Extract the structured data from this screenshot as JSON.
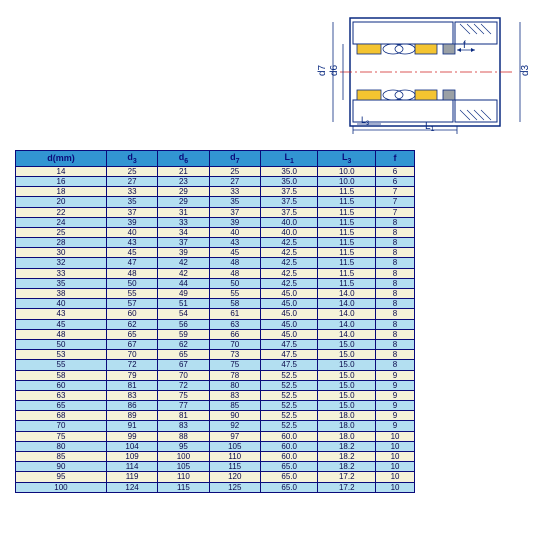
{
  "diagram": {
    "labels": {
      "d7": "d7",
      "d6": "d6",
      "d3": "d3",
      "L1": "L1",
      "L3": "L3",
      "f": "f"
    },
    "colors": {
      "outline": "#0a2a80",
      "centerline": "#d02020",
      "hatch": "#0a2a80",
      "yellow_fill": "#f4c430",
      "gray_fill": "#9aa0a5",
      "white_fill": "#ffffff"
    }
  },
  "table": {
    "header_bg": "#3295d2",
    "header_text": "#0a0a7a",
    "border_color": "#0a0a7a",
    "row_a_bg": "#f5f2d8",
    "row_b_bg": "#b3dff1",
    "columns": [
      "d(mm)",
      "d3",
      "d6",
      "d7",
      "L1",
      "L3",
      "f"
    ],
    "rows": [
      [
        "14",
        "25",
        "21",
        "25",
        "35.0",
        "10.0",
        "6"
      ],
      [
        "16",
        "27",
        "23",
        "27",
        "35.0",
        "10.0",
        "6"
      ],
      [
        "18",
        "33",
        "29",
        "33",
        "37.5",
        "11.5",
        "7"
      ],
      [
        "20",
        "35",
        "29",
        "35",
        "37.5",
        "11.5",
        "7"
      ],
      [
        "22",
        "37",
        "31",
        "37",
        "37.5",
        "11.5",
        "7"
      ],
      [
        "24",
        "39",
        "33",
        "39",
        "40.0",
        "11.5",
        "8"
      ],
      [
        "25",
        "40",
        "34",
        "40",
        "40.0",
        "11.5",
        "8"
      ],
      [
        "28",
        "43",
        "37",
        "43",
        "42.5",
        "11.5",
        "8"
      ],
      [
        "30",
        "45",
        "39",
        "45",
        "42.5",
        "11.5",
        "8"
      ],
      [
        "32",
        "47",
        "42",
        "48",
        "42.5",
        "11.5",
        "8"
      ],
      [
        "33",
        "48",
        "42",
        "48",
        "42.5",
        "11.5",
        "8"
      ],
      [
        "35",
        "50",
        "44",
        "50",
        "42.5",
        "11.5",
        "8"
      ],
      [
        "38",
        "55",
        "49",
        "55",
        "45.0",
        "14.0",
        "8"
      ],
      [
        "40",
        "57",
        "51",
        "58",
        "45.0",
        "14.0",
        "8"
      ],
      [
        "43",
        "60",
        "54",
        "61",
        "45.0",
        "14.0",
        "8"
      ],
      [
        "45",
        "62",
        "56",
        "63",
        "45.0",
        "14.0",
        "8"
      ],
      [
        "48",
        "65",
        "59",
        "66",
        "45.0",
        "14.0",
        "8"
      ],
      [
        "50",
        "67",
        "62",
        "70",
        "47.5",
        "15.0",
        "8"
      ],
      [
        "53",
        "70",
        "65",
        "73",
        "47.5",
        "15.0",
        "8"
      ],
      [
        "55",
        "72",
        "67",
        "75",
        "47.5",
        "15.0",
        "8"
      ],
      [
        "58",
        "79",
        "70",
        "78",
        "52.5",
        "15.0",
        "9"
      ],
      [
        "60",
        "81",
        "72",
        "80",
        "52.5",
        "15.0",
        "9"
      ],
      [
        "63",
        "83",
        "75",
        "83",
        "52.5",
        "15.0",
        "9"
      ],
      [
        "65",
        "86",
        "77",
        "85",
        "52.5",
        "15.0",
        "9"
      ],
      [
        "68",
        "89",
        "81",
        "90",
        "52.5",
        "18.0",
        "9"
      ],
      [
        "70",
        "91",
        "83",
        "92",
        "52.5",
        "18.0",
        "9"
      ],
      [
        "75",
        "99",
        "88",
        "97",
        "60.0",
        "18.0",
        "10"
      ],
      [
        "80",
        "104",
        "95",
        "105",
        "60.0",
        "18.2",
        "10"
      ],
      [
        "85",
        "109",
        "100",
        "110",
        "60.0",
        "18.2",
        "10"
      ],
      [
        "90",
        "114",
        "105",
        "115",
        "65.0",
        "18.2",
        "10"
      ],
      [
        "95",
        "119",
        "110",
        "120",
        "65.0",
        "17.2",
        "10"
      ],
      [
        "100",
        "124",
        "115",
        "125",
        "65.0",
        "17.2",
        "10"
      ]
    ]
  }
}
